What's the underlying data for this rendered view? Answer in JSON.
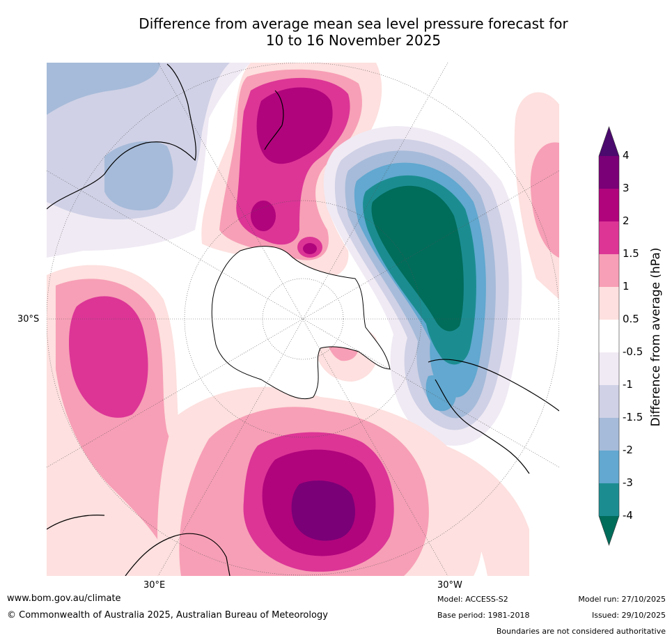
{
  "title": {
    "line1": "Difference from average mean sea level pressure forecast for",
    "line2": "10 to 16 November 2025"
  },
  "map": {
    "labels": {
      "lat_left": "30°S",
      "lon_bottom_left": "30°E",
      "lon_bottom_right": "30°W"
    }
  },
  "colorbar": {
    "title": "Difference from average (hPa)",
    "ticks": [
      "4",
      "3",
      "2",
      "1.5",
      "1",
      "0.5",
      "-0.5",
      "-1",
      "-1.5",
      "-2",
      "-3",
      "-4"
    ],
    "colors": {
      "extend_high": "#4b0a6e",
      "c4": "#7a0077",
      "c3": "#b0047c",
      "c2": "#dc3596",
      "c15": "#f79fb6",
      "c1": "#fde0df",
      "c05": "#ffffff",
      "cm05": "#f0eaf4",
      "cm1": "#d0d1e6",
      "cm15": "#a6bbd9",
      "cm2": "#62a8d0",
      "cm3": "#1b8d91",
      "extend_low": "#006c5a"
    }
  },
  "footer": {
    "url": "www.bom.gov.au/climate",
    "copyright": "© Commonwealth of Australia 2025, Australian Bureau of Meteorology",
    "model": "Model: ACCESS-S2",
    "base_period": "Base period: 1981-2018",
    "model_run": "Model run: 27/10/2025",
    "issued": "Issued: 29/10/2025",
    "disclaimer": "Boundaries are not considered authoritative"
  }
}
